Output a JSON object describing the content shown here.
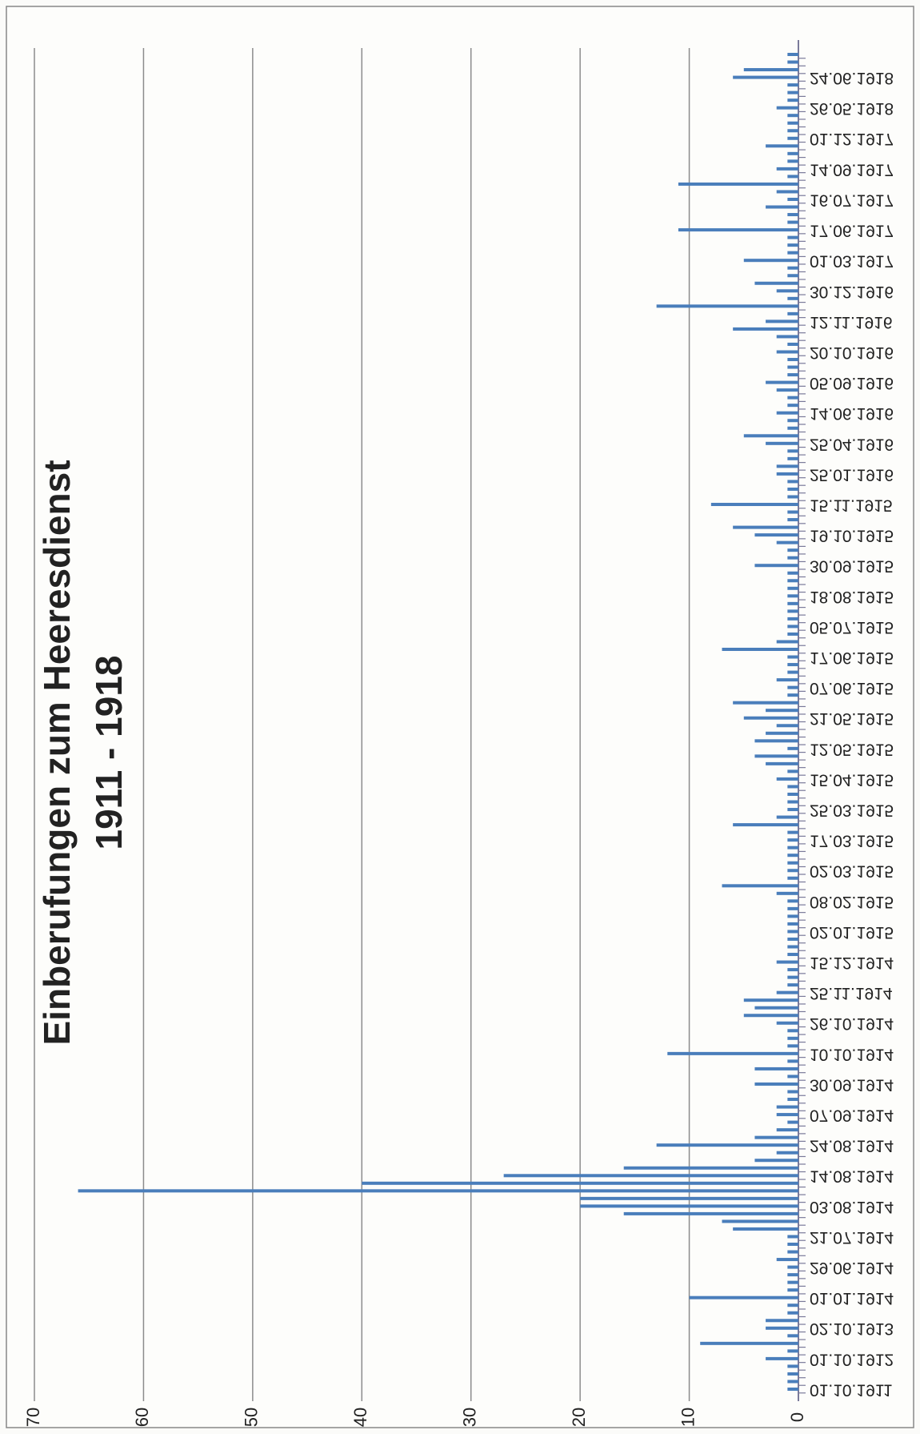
{
  "chart_data": {
    "type": "bar",
    "title": "Einberufungen zum Heeresdienst",
    "subtitle": "1911 - 1918",
    "color": "#4a7ebb",
    "grid": true,
    "ylim": [
      0,
      70
    ],
    "yticks": [
      0,
      10,
      20,
      30,
      40,
      50,
      60,
      70
    ],
    "categories": [
      "01.10.1911",
      null,
      null,
      null,
      "01.10.1912",
      null,
      null,
      null,
      "02.10.1913",
      null,
      null,
      null,
      "01.01.1914",
      null,
      null,
      null,
      "29.06.1914",
      null,
      null,
      null,
      "21.07.1914",
      null,
      null,
      null,
      "03.08.1914",
      null,
      null,
      null,
      "14.08.1914",
      null,
      null,
      null,
      "24.08.1914",
      null,
      null,
      null,
      "07.09.1914",
      null,
      null,
      null,
      "30.09.1914",
      null,
      null,
      null,
      "10.10.1914",
      null,
      null,
      null,
      "26.10.1914",
      null,
      null,
      null,
      "25.11.1914",
      null,
      null,
      null,
      "15.12.1914",
      null,
      null,
      null,
      "02.01.1915",
      null,
      null,
      null,
      "08.02.1915",
      null,
      null,
      null,
      "02.03.1915",
      null,
      null,
      null,
      "17.03.1915",
      null,
      null,
      null,
      "25.03.1915",
      null,
      null,
      null,
      "15.04.1915",
      null,
      null,
      null,
      "12.05.1915",
      null,
      null,
      null,
      "21.05.1915",
      null,
      null,
      null,
      "07.06.1915",
      null,
      null,
      null,
      "17.06.1915",
      null,
      null,
      null,
      "05.07.1915",
      null,
      null,
      null,
      "18.08.1915",
      null,
      null,
      null,
      "30.09.1915",
      null,
      null,
      null,
      "19.10.1915",
      null,
      null,
      null,
      "15.11.1915",
      null,
      null,
      null,
      "25.01.1916",
      null,
      null,
      null,
      "25.04.1916",
      null,
      null,
      null,
      "14.06.1916",
      null,
      null,
      null,
      "05.09.1916",
      null,
      null,
      null,
      "20.10.1916",
      null,
      null,
      null,
      "12.11.1916",
      null,
      null,
      null,
      "30.12.1916",
      null,
      null,
      null,
      "01.03.1917",
      null,
      null,
      null,
      "17.06.1917",
      null,
      null,
      null,
      "16.07.1917",
      null,
      null,
      null,
      "14.09.1917",
      null,
      null,
      null,
      "01.12.1917",
      null,
      null,
      null,
      "26.05.1918",
      null,
      null,
      null,
      "24.06.1918",
      null,
      null,
      null
    ],
    "values": [
      1,
      1,
      1,
      1,
      3,
      1,
      9,
      1,
      3,
      3,
      1,
      1,
      10,
      1,
      1,
      1,
      1,
      2,
      1,
      1,
      1,
      6,
      7,
      16,
      20,
      20,
      66,
      40,
      27,
      16,
      4,
      2,
      13,
      4,
      2,
      1,
      2,
      2,
      1,
      1,
      4,
      1,
      4,
      1,
      12,
      1,
      1,
      1,
      2,
      5,
      4,
      5,
      2,
      1,
      1,
      1,
      2,
      1,
      1,
      1,
      1,
      1,
      1,
      1,
      1,
      2,
      7,
      1,
      1,
      1,
      1,
      1,
      1,
      1,
      6,
      2,
      1,
      1,
      1,
      1,
      2,
      1,
      3,
      4,
      1,
      4,
      3,
      2,
      5,
      3,
      6,
      1,
      1,
      2,
      1,
      1,
      1,
      7,
      2,
      1,
      1,
      1,
      1,
      1,
      1,
      1,
      1,
      1,
      4,
      1,
      1,
      2,
      4,
      6,
      1,
      1,
      8,
      1,
      1,
      1,
      2,
      2,
      1,
      1,
      3,
      5,
      1,
      1,
      2,
      1,
      1,
      2,
      3,
      1,
      1,
      1,
      2,
      1,
      2,
      6,
      3,
      1,
      13,
      1,
      2,
      4,
      1,
      1,
      5,
      1,
      1,
      1,
      11,
      1,
      1,
      3,
      1,
      2,
      11,
      1,
      2,
      1,
      1,
      3,
      1,
      1,
      1,
      1,
      2,
      1,
      1,
      1,
      6,
      5,
      1,
      1
    ]
  }
}
